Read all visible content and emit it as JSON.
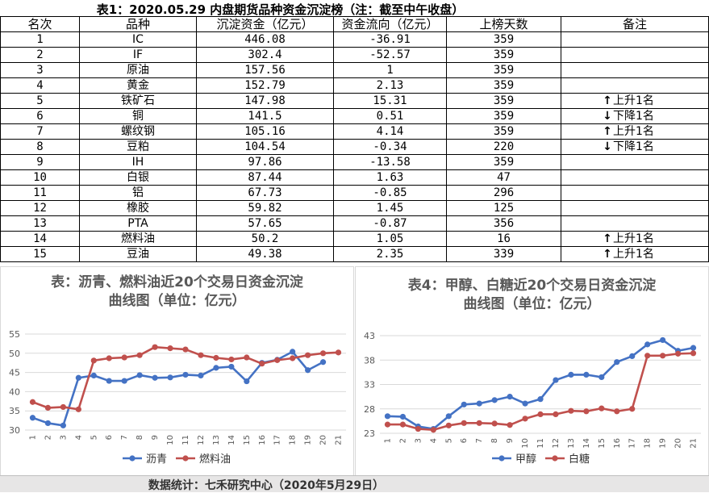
{
  "table": {
    "title": "表1：2020.05.29 内盘期货品种资金沉淀榜（注：截至中午收盘）",
    "headers": [
      "名次",
      "品种",
      "沉淀资金（亿元）",
      "资金流向（亿元）",
      "上榜天数",
      "备注"
    ],
    "rows": [
      {
        "rank": "1",
        "name": "IC",
        "funds": "446.08",
        "flow": "-36.91",
        "days": "359",
        "note": "",
        "dir": ""
      },
      {
        "rank": "2",
        "name": "IF",
        "funds": "302.4",
        "flow": "-52.57",
        "days": "359",
        "note": "",
        "dir": ""
      },
      {
        "rank": "3",
        "name": "原油",
        "funds": "157.56",
        "flow": "1",
        "days": "359",
        "note": "",
        "dir": ""
      },
      {
        "rank": "4",
        "name": "黄金",
        "funds": "152.79",
        "flow": "2.13",
        "days": "359",
        "note": "",
        "dir": ""
      },
      {
        "rank": "5",
        "name": "铁矿石",
        "funds": "147.98",
        "flow": "15.31",
        "days": "359",
        "note": "上升1名",
        "dir": "up"
      },
      {
        "rank": "6",
        "name": "铜",
        "funds": "141.5",
        "flow": "0.51",
        "days": "359",
        "note": "下降1名",
        "dir": "down"
      },
      {
        "rank": "7",
        "name": "螺纹钢",
        "funds": "105.16",
        "flow": "4.14",
        "days": "359",
        "note": "上升1名",
        "dir": "up"
      },
      {
        "rank": "8",
        "name": "豆粕",
        "funds": "104.54",
        "flow": "-0.34",
        "days": "220",
        "note": "下降1名",
        "dir": "down"
      },
      {
        "rank": "9",
        "name": "IH",
        "funds": "97.86",
        "flow": "-13.58",
        "days": "359",
        "note": "",
        "dir": ""
      },
      {
        "rank": "10",
        "name": "白银",
        "funds": "87.44",
        "flow": "1.63",
        "days": "47",
        "note": "",
        "dir": ""
      },
      {
        "rank": "11",
        "name": "铝",
        "funds": "67.73",
        "flow": "-0.85",
        "days": "296",
        "note": "",
        "dir": ""
      },
      {
        "rank": "12",
        "name": "橡胶",
        "funds": "59.82",
        "flow": "1.45",
        "days": "125",
        "note": "",
        "dir": ""
      },
      {
        "rank": "13",
        "name": "PTA",
        "funds": "57.65",
        "flow": "-0.87",
        "days": "356",
        "note": "",
        "dir": ""
      },
      {
        "rank": "14",
        "name": "燃料油",
        "funds": "50.2",
        "flow": "1.05",
        "days": "16",
        "note": "上升1名",
        "dir": "up"
      },
      {
        "rank": "15",
        "name": "豆油",
        "funds": "49.38",
        "flow": "2.35",
        "days": "339",
        "note": "上升1名",
        "dir": "up"
      }
    ],
    "arrow_icons": {
      "up": "arrow-up-icon",
      "down": "arrow-down-icon"
    }
  },
  "chart_data": [
    {
      "type": "line",
      "title_line1": "表：沥青、燃料油近20个交易日资金沉淀",
      "title_line2": "曲线图（单位：亿元）",
      "x": [
        "1",
        "2",
        "3",
        "4",
        "5",
        "6",
        "7",
        "8",
        "9",
        "10",
        "11",
        "12",
        "13",
        "14",
        "15",
        "16",
        "17",
        "18",
        "19",
        "20",
        "21"
      ],
      "ylim": [
        30,
        55
      ],
      "yticks": [
        "30",
        "35",
        "40",
        "45",
        "50",
        "55"
      ],
      "series": [
        {
          "name": "沥青",
          "color": "#4472c4",
          "values": [
            33.2,
            31.8,
            31.2,
            43.6,
            44.2,
            42.8,
            42.8,
            44.3,
            43.6,
            43.7,
            44.4,
            44.2,
            46.2,
            46.5,
            42.7,
            47.5,
            48.3,
            50.4,
            45.6,
            47.7,
            null
          ]
        },
        {
          "name": "燃料油",
          "color": "#c0504d",
          "values": [
            37.3,
            35.8,
            36.0,
            35.4,
            48.1,
            48.7,
            48.9,
            49.5,
            51.6,
            51.3,
            51.0,
            49.5,
            48.8,
            48.4,
            48.9,
            47.3,
            48.2,
            48.7,
            49.5,
            50.0,
            50.2
          ]
        }
      ]
    },
    {
      "type": "line",
      "title_line1": "表4：甲醇、白糖近20个交易日资金沉淀",
      "title_line2": "曲线图（单位：亿元）",
      "x": [
        "1",
        "2",
        "3",
        "4",
        "5",
        "6",
        "7",
        "8",
        "9",
        "10",
        "11",
        "12",
        "13",
        "14",
        "15",
        "16",
        "17",
        "18",
        "19",
        "20",
        "21"
      ],
      "ylim": [
        23,
        43
      ],
      "yticks": [
        "23",
        "28",
        "33",
        "38",
        "43"
      ],
      "series": [
        {
          "name": "甲醇",
          "color": "#4472c4",
          "values": [
            26.5,
            26.4,
            24.4,
            23.9,
            26.5,
            28.9,
            29.1,
            29.8,
            30.5,
            29.1,
            30.0,
            33.9,
            35.0,
            35.0,
            34.5,
            37.6,
            38.8,
            41.2,
            42.1,
            39.9,
            40.5
          ]
        },
        {
          "name": "白糖",
          "color": "#c0504d",
          "values": [
            24.8,
            24.8,
            23.9,
            23.7,
            24.6,
            25.1,
            25.1,
            25.0,
            24.7,
            26.0,
            26.9,
            26.9,
            27.6,
            27.5,
            28.1,
            27.5,
            28.0,
            38.9,
            38.9,
            39.3,
            39.4
          ]
        }
      ]
    }
  ],
  "footer": {
    "text": "数据统计：七禾研究中心（2020年5月29日）"
  }
}
